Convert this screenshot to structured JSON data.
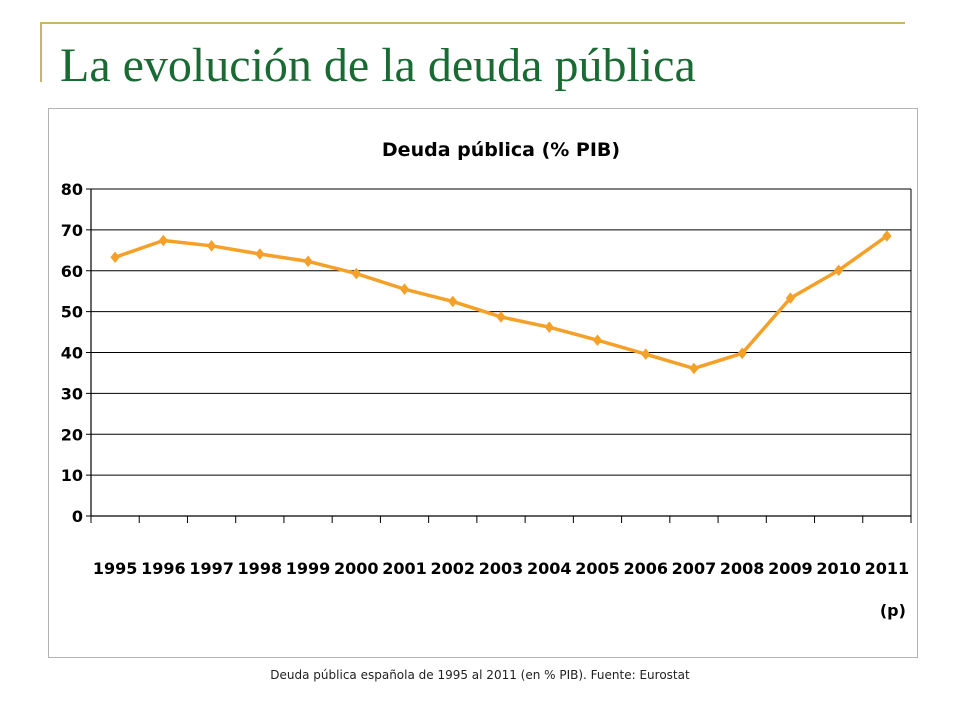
{
  "slide": {
    "title": "La evolución de la deuda pública",
    "caption": "Deuda pública española de 1995 al 2011 (en % PIB). Fuente: Eurostat"
  },
  "chart_data": {
    "type": "line",
    "title": "Deuda pública (% PIB)",
    "xlabel": "",
    "ylabel": "",
    "categories": [
      "1995",
      "1996",
      "1997",
      "1998",
      "1999",
      "2000",
      "2001",
      "2002",
      "2003",
      "2004",
      "2005",
      "2006",
      "2007",
      "2008",
      "2009",
      "2010",
      "2011"
    ],
    "category_sublabels": {
      "2011": "(p)"
    },
    "series": [
      {
        "values": [
          63.3,
          67.4,
          66.1,
          64.1,
          62.3,
          59.3,
          55.5,
          52.5,
          48.7,
          46.2,
          43.0,
          39.6,
          36.1,
          39.8,
          53.3,
          60.1,
          68.5
        ],
        "color": "#f5a028"
      }
    ],
    "ylim": [
      0,
      80
    ],
    "yticks": [
      0,
      10,
      20,
      30,
      40,
      50,
      60,
      70,
      80
    ],
    "grid": true,
    "legend": "none"
  }
}
